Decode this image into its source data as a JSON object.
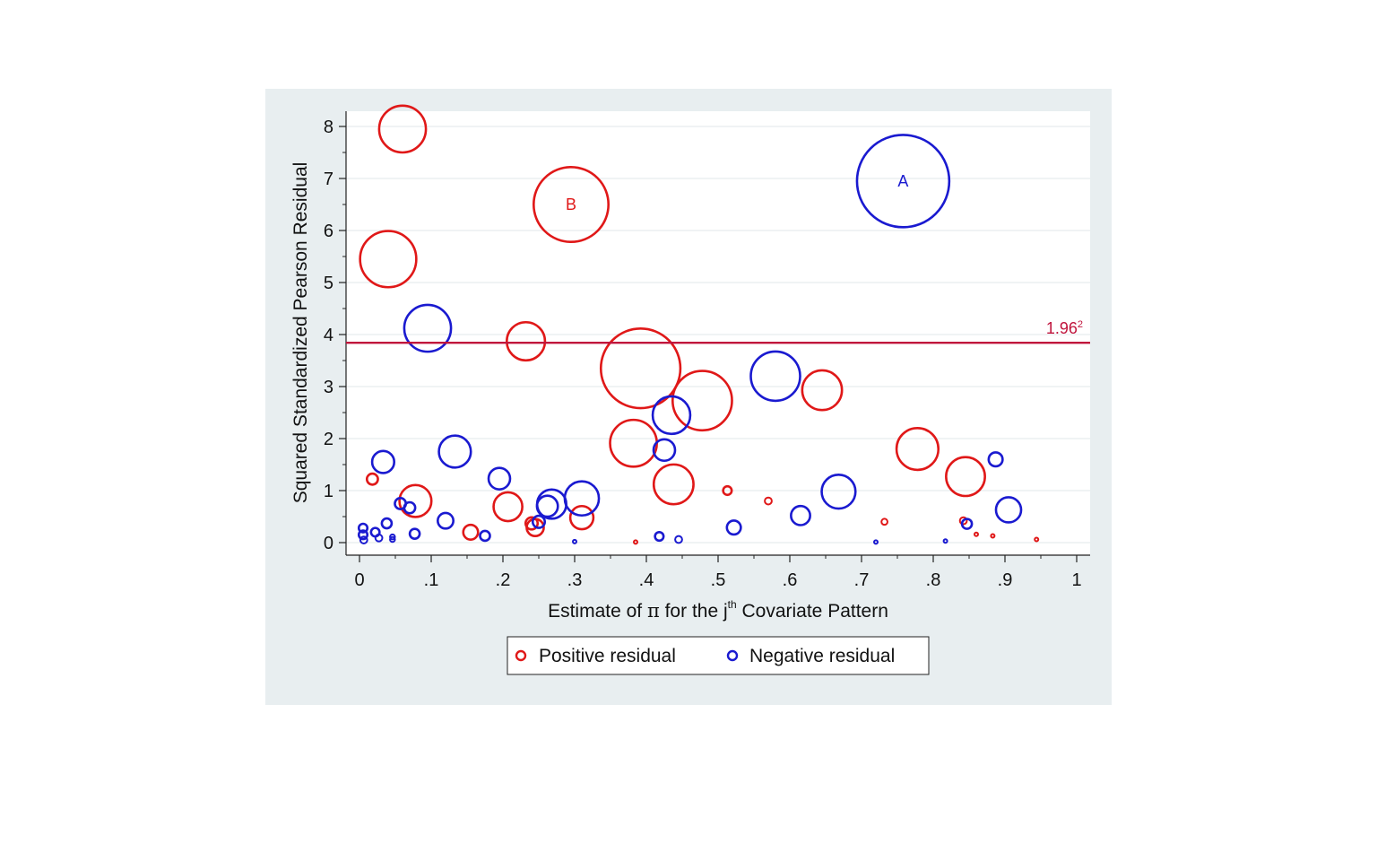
{
  "chart_data": {
    "type": "scatter",
    "xlabel": "Estimate of π for the jth Covariate Pattern",
    "xlabel_parts": {
      "before": "Estimate of ",
      "pi": "π",
      "mid": " for the j",
      "sup": "th",
      "after": " Covariate Pattern"
    },
    "ylabel": "Squared Standardized Pearson Residual",
    "xlim": [
      0,
      1
    ],
    "ylim": [
      0,
      8
    ],
    "x_ticks": [
      "0",
      ".1",
      ".2",
      ".3",
      ".4",
      ".5",
      ".6",
      ".7",
      ".8",
      ".9",
      "1"
    ],
    "x_tick_values": [
      0,
      0.1,
      0.2,
      0.3,
      0.4,
      0.5,
      0.6,
      0.7,
      0.8,
      0.9,
      1
    ],
    "y_ticks": [
      "0",
      "1",
      "2",
      "3",
      "4",
      "5",
      "6",
      "7",
      "8"
    ],
    "y_tick_values": [
      0,
      1,
      2,
      3,
      4,
      5,
      6,
      7,
      8
    ],
    "grid": "horizontal",
    "legend_placement": "bottom",
    "reference_line": {
      "value": 3.8416,
      "label_base": "1.96",
      "label_sup": "2",
      "color": "#c0143c"
    },
    "annotations": [
      {
        "text": "A",
        "x": 0.758,
        "y": 6.95,
        "color": "#1a1ad0"
      },
      {
        "text": "B",
        "x": 0.295,
        "y": 6.5,
        "color": "#e01818"
      }
    ],
    "series": [
      {
        "name": "Positive residual",
        "color": "#e01818",
        "points": [
          {
            "x": 0.06,
            "y": 7.95,
            "s": 0.9
          },
          {
            "x": 0.295,
            "y": 6.5,
            "s": 2.3
          },
          {
            "x": 0.04,
            "y": 5.45,
            "s": 1.3
          },
          {
            "x": 0.232,
            "y": 3.87,
            "s": 0.6
          },
          {
            "x": 0.392,
            "y": 3.35,
            "s": 2.6
          },
          {
            "x": 0.478,
            "y": 2.73,
            "s": 1.45
          },
          {
            "x": 0.645,
            "y": 2.93,
            "s": 0.65
          },
          {
            "x": 0.382,
            "y": 1.91,
            "s": 0.9
          },
          {
            "x": 0.438,
            "y": 1.12,
            "s": 0.65
          },
          {
            "x": 0.778,
            "y": 1.8,
            "s": 0.72
          },
          {
            "x": 0.845,
            "y": 1.27,
            "s": 0.62
          },
          {
            "x": 0.018,
            "y": 1.22,
            "s": 0.05
          },
          {
            "x": 0.078,
            "y": 0.8,
            "s": 0.42
          },
          {
            "x": 0.207,
            "y": 0.69,
            "s": 0.34
          },
          {
            "x": 0.155,
            "y": 0.2,
            "s": 0.09
          },
          {
            "x": 0.24,
            "y": 0.37,
            "s": 0.06
          },
          {
            "x": 0.245,
            "y": 0.29,
            "s": 0.12
          },
          {
            "x": 0.31,
            "y": 0.48,
            "s": 0.22
          },
          {
            "x": 0.513,
            "y": 1.0,
            "s": 0.03
          },
          {
            "x": 0.57,
            "y": 0.8,
            "s": 0.02
          },
          {
            "x": 0.732,
            "y": 0.4,
            "s": 0.015
          },
          {
            "x": 0.842,
            "y": 0.42,
            "s": 0.02
          },
          {
            "x": 0.86,
            "y": 0.16,
            "s": 0.005
          },
          {
            "x": 0.883,
            "y": 0.13,
            "s": 0.004
          },
          {
            "x": 0.385,
            "y": 0.01,
            "s": 0.002
          },
          {
            "x": 0.944,
            "y": 0.06,
            "s": 0.002
          }
        ]
      },
      {
        "name": "Negative residual",
        "color": "#1a1ad0",
        "points": [
          {
            "x": 0.758,
            "y": 6.95,
            "s": 3.5
          },
          {
            "x": 0.095,
            "y": 4.12,
            "s": 0.9
          },
          {
            "x": 0.58,
            "y": 3.2,
            "s": 1.0
          },
          {
            "x": 0.435,
            "y": 2.45,
            "s": 0.58
          },
          {
            "x": 0.425,
            "y": 1.78,
            "s": 0.19
          },
          {
            "x": 0.133,
            "y": 1.75,
            "s": 0.42
          },
          {
            "x": 0.033,
            "y": 1.55,
            "s": 0.2
          },
          {
            "x": 0.195,
            "y": 1.23,
            "s": 0.19
          },
          {
            "x": 0.31,
            "y": 0.85,
            "s": 0.48
          },
          {
            "x": 0.268,
            "y": 0.74,
            "s": 0.35
          },
          {
            "x": 0.262,
            "y": 0.7,
            "s": 0.18
          },
          {
            "x": 0.668,
            "y": 0.98,
            "s": 0.47
          },
          {
            "x": 0.905,
            "y": 0.63,
            "s": 0.26
          },
          {
            "x": 0.615,
            "y": 0.52,
            "s": 0.15
          },
          {
            "x": 0.522,
            "y": 0.29,
            "s": 0.08
          },
          {
            "x": 0.12,
            "y": 0.42,
            "s": 0.1
          },
          {
            "x": 0.057,
            "y": 0.75,
            "s": 0.05
          },
          {
            "x": 0.07,
            "y": 0.67,
            "s": 0.05
          },
          {
            "x": 0.038,
            "y": 0.37,
            "s": 0.04
          },
          {
            "x": 0.022,
            "y": 0.2,
            "s": 0.03
          },
          {
            "x": 0.005,
            "y": 0.28,
            "s": 0.03
          },
          {
            "x": 0.005,
            "y": 0.15,
            "s": 0.03
          },
          {
            "x": 0.006,
            "y": 0.05,
            "s": 0.02
          },
          {
            "x": 0.027,
            "y": 0.09,
            "s": 0.02
          },
          {
            "x": 0.046,
            "y": 0.06,
            "s": 0.01
          },
          {
            "x": 0.046,
            "y": 0.11,
            "s": 0.01
          },
          {
            "x": 0.077,
            "y": 0.17,
            "s": 0.04
          },
          {
            "x": 0.175,
            "y": 0.13,
            "s": 0.04
          },
          {
            "x": 0.25,
            "y": 0.4,
            "s": 0.06
          },
          {
            "x": 0.3,
            "y": 0.02,
            "s": 0.005
          },
          {
            "x": 0.418,
            "y": 0.12,
            "s": 0.03
          },
          {
            "x": 0.445,
            "y": 0.06,
            "s": 0.02
          },
          {
            "x": 0.72,
            "y": 0.01,
            "s": 0.002
          },
          {
            "x": 0.817,
            "y": 0.03,
            "s": 0.005
          },
          {
            "x": 0.847,
            "y": 0.36,
            "s": 0.04
          },
          {
            "x": 0.887,
            "y": 1.6,
            "s": 0.08
          }
        ]
      }
    ]
  }
}
